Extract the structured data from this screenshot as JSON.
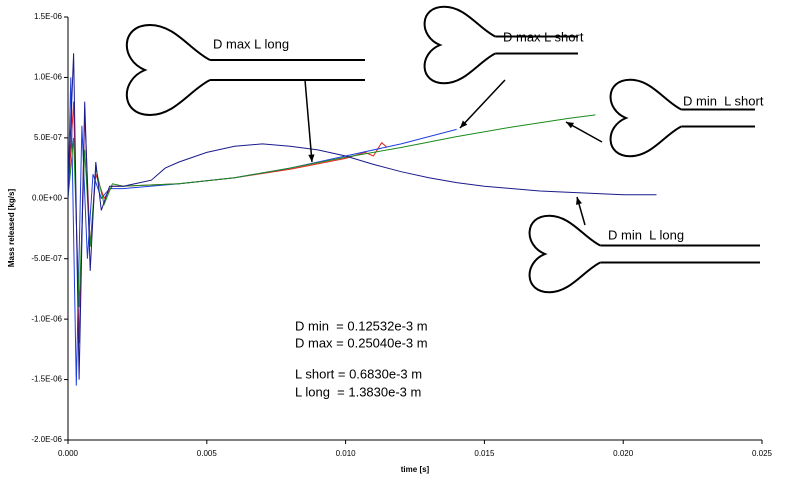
{
  "chart_data": {
    "type": "line",
    "xlabel": "time [s]",
    "ylabel": "Mass released [kg/s]",
    "xlim": [
      0,
      0.025
    ],
    "ylim": [
      -2e-06,
      1.5e-06
    ],
    "xticks": [
      {
        "value": 0,
        "label": "0.000"
      },
      {
        "value": 0.005,
        "label": "0.005"
      },
      {
        "value": 0.01,
        "label": "0.010"
      },
      {
        "value": 0.015,
        "label": "0.015"
      },
      {
        "value": 0.02,
        "label": "0.020"
      },
      {
        "value": 0.025,
        "label": "0.025"
      }
    ],
    "yticks": [
      {
        "value": 1.5e-06,
        "label": "1.5E-06"
      },
      {
        "value": 1e-06,
        "label": "1.0E-06"
      },
      {
        "value": 5e-07,
        "label": "5.0E-07"
      },
      {
        "value": 0,
        "label": "0.0E+00"
      },
      {
        "value": -5e-07,
        "label": "-5.0E-07"
      },
      {
        "value": -1e-06,
        "label": "-1.0E-06"
      },
      {
        "value": -1.5e-06,
        "label": "-1.5E-06"
      },
      {
        "value": -2e-06,
        "label": "-2.0E-06"
      }
    ],
    "series": [
      {
        "name": "D max L long",
        "color": "#e8201c",
        "x": [
          0,
          0.0002,
          0.0004,
          0.0006,
          0.0008,
          0.001,
          0.0013,
          0.0016,
          0.002,
          0.004,
          0.006,
          0.008,
          0.01,
          0.0107,
          0.011,
          0.0113,
          0.0115
        ],
        "values": [
          0,
          8e-07,
          -1.2e-06,
          7e-07,
          -4e-07,
          2e-07,
          0,
          1e-07,
          1e-07,
          1.2e-07,
          1.7e-07,
          2.4e-07,
          3.3e-07,
          3.8e-07,
          3.5e-07,
          4.6e-07,
          4.2e-07
        ]
      },
      {
        "name": "D max L short",
        "color": "#1f3fe0",
        "x": [
          0,
          0.0001,
          0.0003,
          0.0005,
          0.0007,
          0.0009,
          0.0012,
          0.0015,
          0.002,
          0.004,
          0.006,
          0.008,
          0.01,
          0.012,
          0.014
        ],
        "values": [
          0,
          1e-06,
          -1.55e-06,
          6e-07,
          -5e-07,
          2e-07,
          0,
          8e-08,
          8e-08,
          1.2e-07,
          1.7e-07,
          2.5e-07,
          3.5e-07,
          4.5e-07,
          5.7e-07
        ]
      },
      {
        "name": "D min  L short",
        "color": "#1a8a1a",
        "x": [
          0,
          0.0002,
          0.0004,
          0.0006,
          0.0008,
          0.001,
          0.0013,
          0.0016,
          0.002,
          0.004,
          0.006,
          0.008,
          0.01,
          0.012,
          0.014,
          0.016,
          0.018,
          0.019
        ],
        "values": [
          0,
          5e-07,
          -9e-07,
          4e-07,
          -4e-07,
          2.5e-07,
          -5e-08,
          1.2e-07,
          1e-07,
          1.2e-07,
          1.7e-07,
          2.5e-07,
          3.4e-07,
          4.2e-07,
          5.1e-07,
          5.9e-07,
          6.6e-07,
          6.9e-07
        ]
      },
      {
        "name": "D min  L long",
        "color": "#1a1a8c",
        "x": [
          0,
          0.0002,
          0.0004,
          0.0006,
          0.0008,
          0.001,
          0.0012,
          0.0015,
          0.002,
          0.003,
          0.0035,
          0.004,
          0.005,
          0.006,
          0.007,
          0.008,
          0.009,
          0.01,
          0.011,
          0.012,
          0.013,
          0.014,
          0.015,
          0.016,
          0.017,
          0.018,
          0.019,
          0.02,
          0.0212
        ],
        "values": [
          0,
          1.2e-06,
          -1.5e-06,
          8e-07,
          -6e-07,
          3e-07,
          -1e-07,
          1e-07,
          1e-07,
          1.5e-07,
          2.5e-07,
          3e-07,
          3.8e-07,
          4.3e-07,
          4.5e-07,
          4.3e-07,
          4e-07,
          3.5e-07,
          2.8e-07,
          2.2e-07,
          1.7e-07,
          1.3e-07,
          1e-07,
          8e-08,
          6e-08,
          5e-08,
          4e-08,
          3e-08,
          3e-08
        ]
      }
    ],
    "annotations": [
      "D min  = 0.12532e-3 m",
      "D max = 0.25040e-3 m",
      "L short = 0.6830e-3 m",
      "L long  = 1.3830e-3 m"
    ]
  }
}
